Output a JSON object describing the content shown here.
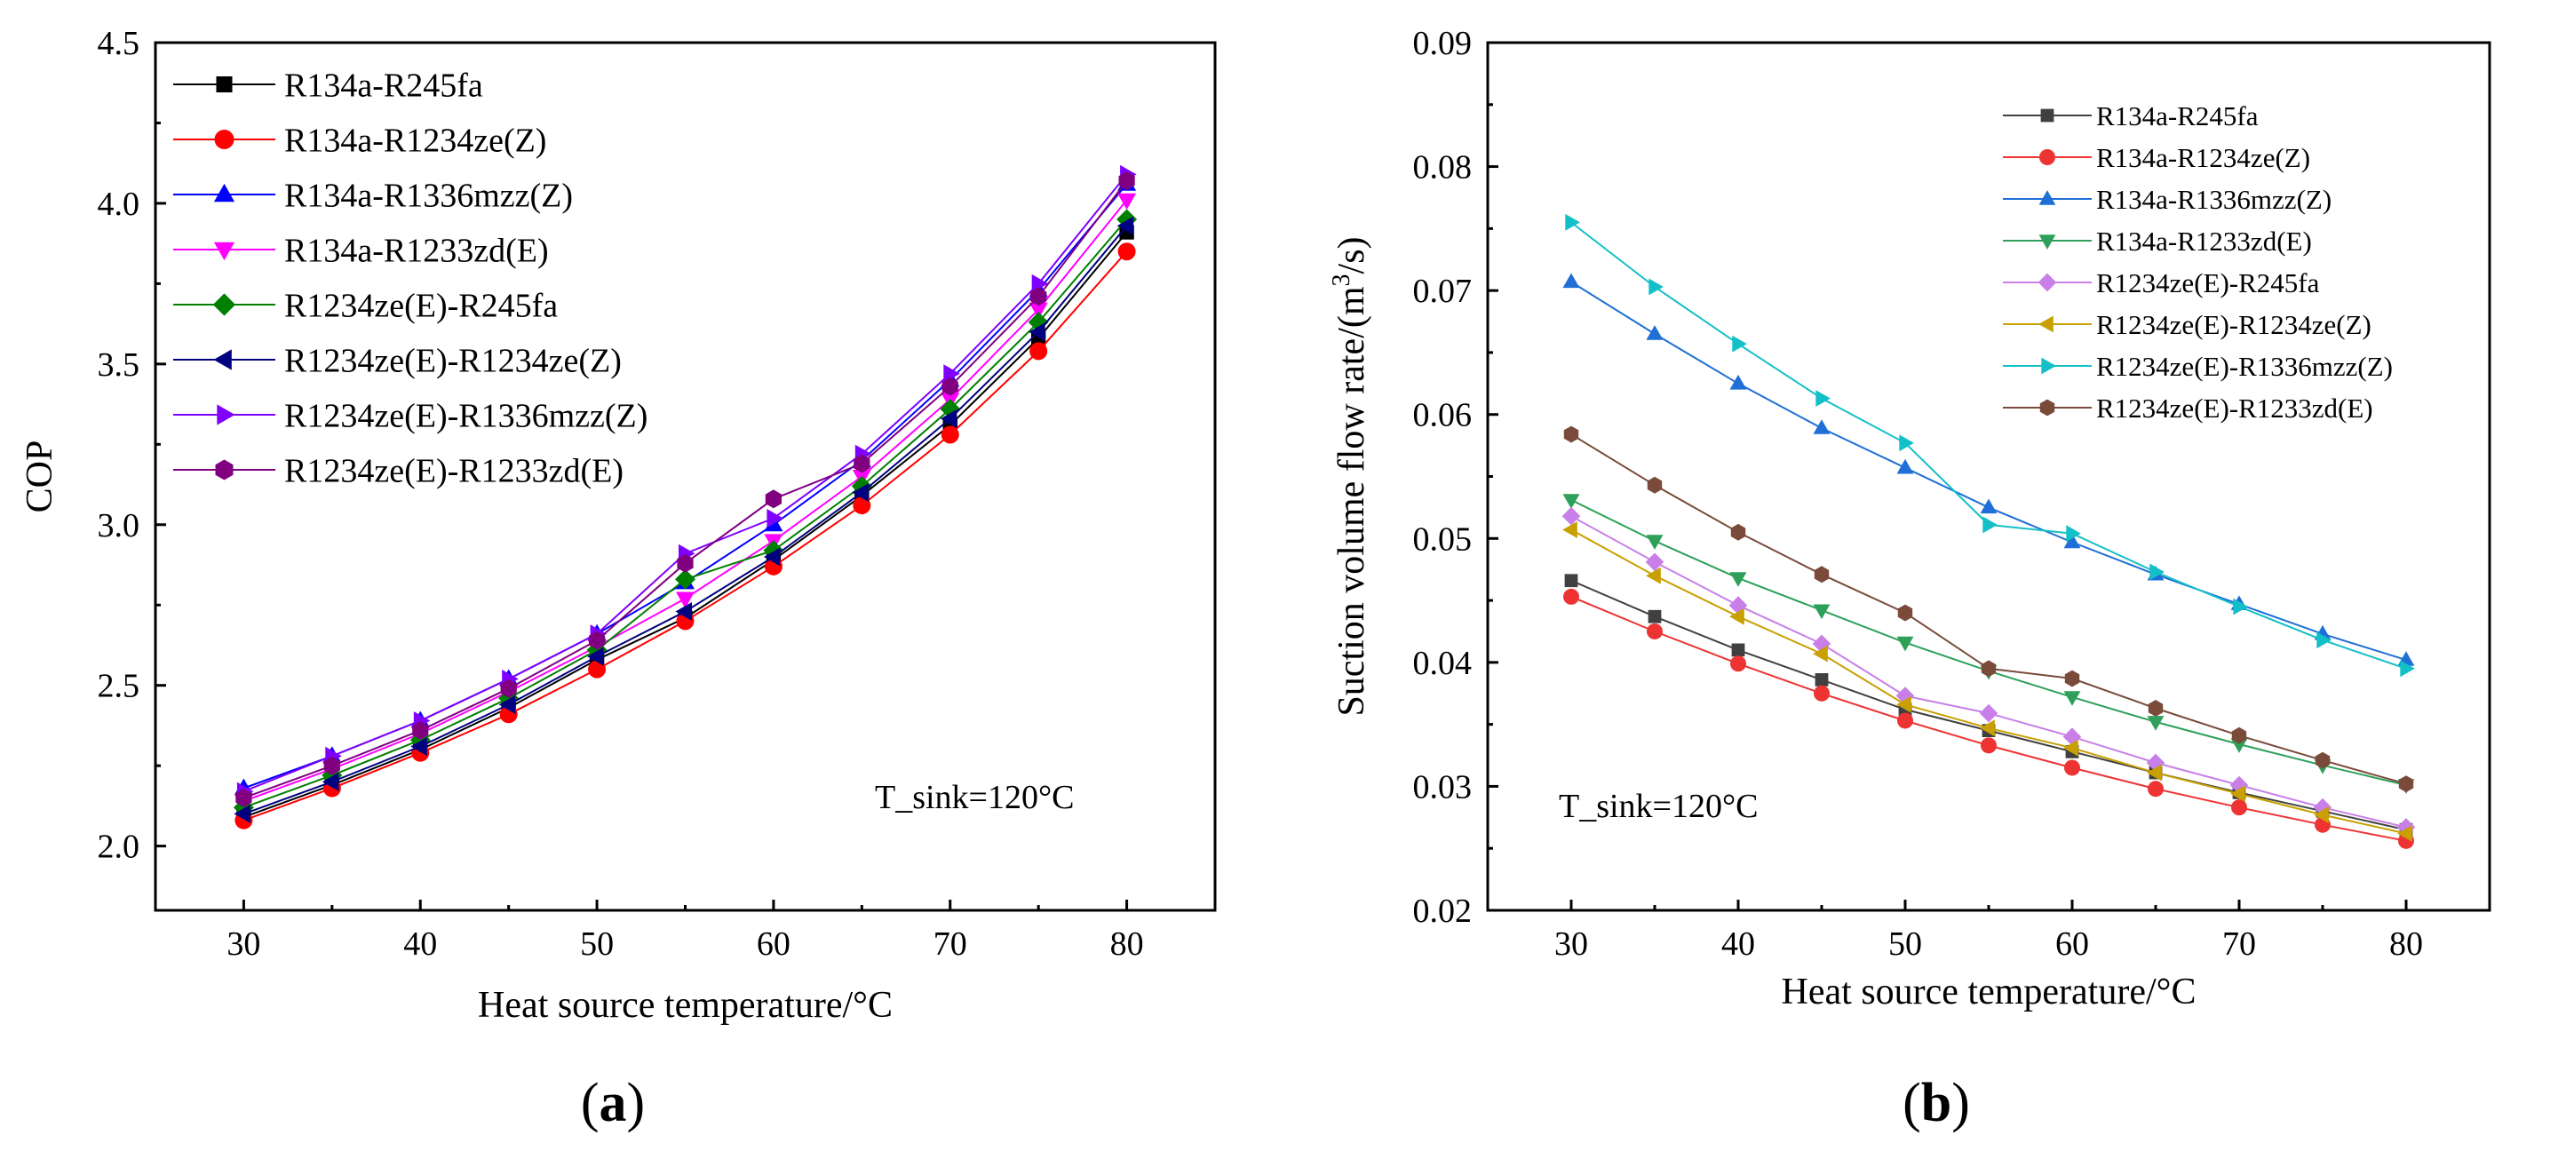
{
  "chart_data": [
    {
      "id": "a",
      "type": "line",
      "panel_label": "(a)",
      "panel_label_parts": [
        "(",
        "a",
        ")"
      ],
      "title": "",
      "xlabel": "Heat source temperature/°C",
      "ylabel": "COP",
      "xlim": [
        25,
        85
      ],
      "ylim": [
        1.8,
        4.5
      ],
      "xticks": [
        30,
        40,
        50,
        60,
        70,
        80
      ],
      "xtick_labels": [
        "30",
        "40",
        "50",
        "60",
        "70",
        "80"
      ],
      "yticks": [
        2.0,
        2.5,
        3.0,
        3.5,
        4.0,
        4.5
      ],
      "ytick_labels": [
        "2.0",
        "2.5",
        "3.0",
        "3.5",
        "4.0",
        "4.5"
      ],
      "annotation": "T_sink=120°C",
      "legend_position": "top-left",
      "x": [
        30,
        35,
        40,
        45,
        50,
        55,
        60,
        65,
        70,
        75,
        80
      ],
      "series": [
        {
          "name": "R134a-R245fa",
          "color": "#000000",
          "marker": "square",
          "values": [
            2.09,
            2.19,
            2.3,
            2.43,
            2.58,
            2.71,
            2.89,
            3.09,
            3.31,
            3.58,
            3.91
          ]
        },
        {
          "name": "R134a-R1234ze(Z)",
          "color": "#ff0000",
          "marker": "circle",
          "values": [
            2.08,
            2.18,
            2.29,
            2.41,
            2.55,
            2.7,
            2.87,
            3.06,
            3.28,
            3.54,
            3.85
          ]
        },
        {
          "name": "R134a-R1336mzz(Z)",
          "color": "#0000ff",
          "marker": "triangle-up",
          "values": [
            2.18,
            2.28,
            2.39,
            2.52,
            2.66,
            2.82,
            3.0,
            3.2,
            3.45,
            3.73,
            4.06
          ]
        },
        {
          "name": "R134a-R1233zd(E)",
          "color": "#ff00ff",
          "marker": "triangle-down",
          "values": [
            2.14,
            2.24,
            2.35,
            2.48,
            2.62,
            2.77,
            2.95,
            3.15,
            3.39,
            3.67,
            4.01
          ]
        },
        {
          "name": "R1234ze(E)-R245fa",
          "color": "#008000",
          "marker": "diamond",
          "values": [
            2.12,
            2.22,
            2.33,
            2.46,
            2.61,
            2.83,
            2.92,
            3.12,
            3.36,
            3.63,
            3.95
          ]
        },
        {
          "name": "R1234ze(E)-R1234ze(Z)",
          "color": "#000080",
          "marker": "triangle-left",
          "values": [
            2.1,
            2.2,
            2.31,
            2.44,
            2.59,
            2.73,
            2.9,
            3.1,
            3.33,
            3.6,
            3.93
          ]
        },
        {
          "name": "R1234ze(E)-R1336mzz(Z)",
          "color": "#8000ff",
          "marker": "triangle-right",
          "values": [
            2.17,
            2.28,
            2.39,
            2.52,
            2.66,
            2.91,
            3.02,
            3.22,
            3.47,
            3.75,
            4.09
          ]
        },
        {
          "name": "R1234ze(E)-R1233zd(E)",
          "color": "#800080",
          "marker": "hexagon",
          "values": [
            2.15,
            2.25,
            2.36,
            2.49,
            2.64,
            2.88,
            3.08,
            3.19,
            3.43,
            3.71,
            4.07
          ]
        }
      ]
    },
    {
      "id": "b",
      "type": "line",
      "panel_label": "(b)",
      "panel_label_parts": [
        "(",
        "b",
        ")"
      ],
      "title": "",
      "xlabel": "Heat source temperature/°C",
      "ylabel": "Suction volume flow rate/(m",
      "ylabel_sup": "3",
      "ylabel_end": "/s)",
      "xlim": [
        25,
        85
      ],
      "ylim": [
        0.02,
        0.09
      ],
      "xticks": [
        30,
        40,
        50,
        60,
        70,
        80
      ],
      "xtick_labels": [
        "30",
        "40",
        "50",
        "60",
        "70",
        "80"
      ],
      "yticks": [
        0.02,
        0.03,
        0.04,
        0.05,
        0.06,
        0.07,
        0.08,
        0.09
      ],
      "ytick_labels": [
        "0.02",
        "0.03",
        "0.04",
        "0.05",
        "0.06",
        "0.07",
        "0.08",
        "0.09"
      ],
      "annotation": "T_sink=120°C",
      "legend_position": "top-right",
      "x": [
        30,
        35,
        40,
        45,
        50,
        55,
        60,
        65,
        70,
        75,
        80
      ],
      "series": [
        {
          "name": "R134a-R245fa",
          "color": "#404040",
          "marker": "square",
          "values": [
            0.0466,
            0.0437,
            0.041,
            0.0386,
            0.0362,
            0.0345,
            0.0328,
            0.0311,
            0.0295,
            0.028,
            0.0265
          ]
        },
        {
          "name": "R134a-R1234ze(Z)",
          "color": "#ee3333",
          "marker": "circle",
          "values": [
            0.0453,
            0.0425,
            0.0399,
            0.0375,
            0.0353,
            0.0333,
            0.0315,
            0.0298,
            0.0283,
            0.0269,
            0.0256
          ]
        },
        {
          "name": "R134a-R1336mzz(Z)",
          "color": "#1f6fd6",
          "marker": "triangle-up",
          "values": [
            0.0707,
            0.0665,
            0.0625,
            0.0589,
            0.0557,
            0.0525,
            0.0497,
            0.0471,
            0.0447,
            0.0423,
            0.0402
          ]
        },
        {
          "name": "R134a-R1233zd(E)",
          "color": "#2ea05a",
          "marker": "triangle-down",
          "values": [
            0.0531,
            0.0498,
            0.0468,
            0.0442,
            0.0416,
            0.0393,
            0.0372,
            0.0352,
            0.0334,
            0.0317,
            0.0301
          ]
        },
        {
          "name": "R1234ze(E)-R245fa",
          "color": "#c880e8",
          "marker": "diamond",
          "values": [
            0.0518,
            0.0481,
            0.0446,
            0.0415,
            0.0373,
            0.0359,
            0.034,
            0.0319,
            0.0301,
            0.0283,
            0.0267
          ]
        },
        {
          "name": "R1234ze(E)-R1234ze(Z)",
          "color": "#c8a000",
          "marker": "triangle-left",
          "values": [
            0.0507,
            0.047,
            0.0437,
            0.0407,
            0.0366,
            0.0347,
            0.0331,
            0.0311,
            0.0294,
            0.0277,
            0.0262
          ]
        },
        {
          "name": "R1234ze(E)-R1336mzz(Z)",
          "color": "#13c0c8",
          "marker": "triangle-right",
          "values": [
            0.0755,
            0.0703,
            0.0657,
            0.0613,
            0.0577,
            0.0511,
            0.0504,
            0.0473,
            0.0445,
            0.0418,
            0.0395
          ]
        },
        {
          "name": "R1234ze(E)-R1233zd(E)",
          "color": "#7a4b3a",
          "marker": "hexagon",
          "values": [
            0.0584,
            0.0543,
            0.0505,
            0.0471,
            0.044,
            0.0395,
            0.0387,
            0.0363,
            0.0341,
            0.0321,
            0.0302
          ]
        }
      ]
    }
  ]
}
